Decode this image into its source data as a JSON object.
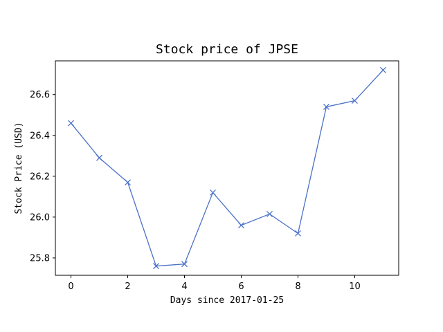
{
  "chart_data": {
    "type": "line",
    "title": "Stock price of JPSE",
    "xlabel": "Days since 2017-01-25",
    "ylabel": "Stock Price (USD)",
    "x": [
      0,
      1,
      2,
      3,
      4,
      5,
      6,
      7,
      8,
      9,
      10,
      11
    ],
    "series": [
      {
        "values": [
          26.46,
          26.29,
          26.17,
          25.76,
          25.77,
          26.12,
          25.96,
          26.015,
          25.92,
          26.54,
          26.57,
          26.72
        ],
        "color": "#4a70c8",
        "marker": "x"
      }
    ],
    "xlim": [
      -0.55,
      11.55
    ],
    "ylim": [
      25.715,
      26.765
    ],
    "xticks": [
      0,
      2,
      4,
      6,
      8,
      10
    ],
    "xtick_labels": [
      "0",
      "2",
      "4",
      "6",
      "8",
      "10"
    ],
    "yticks": [
      25.8,
      26.0,
      26.2,
      26.4,
      26.6
    ],
    "ytick_labels": [
      "25.8",
      "26.0",
      "26.2",
      "26.4",
      "26.6"
    ],
    "grid": false,
    "legend": null
  }
}
